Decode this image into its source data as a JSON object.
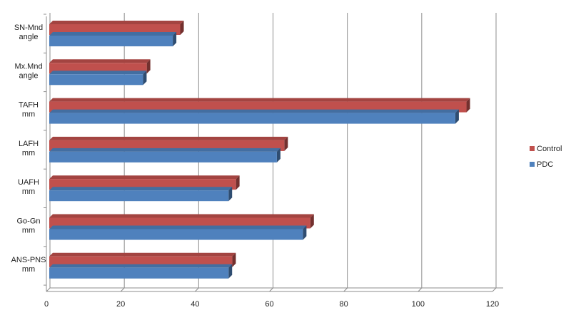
{
  "chart_data": {
    "type": "bar",
    "orientation": "horizontal",
    "style": "3d",
    "categories": [
      [
        "SN-Mnd",
        "angle"
      ],
      [
        "Mx.Mnd",
        "angle"
      ],
      [
        "TAFH",
        "mm"
      ],
      [
        "LAFH",
        "mm"
      ],
      [
        "UAFH",
        "mm"
      ],
      [
        "Go-Gn",
        "mm"
      ],
      [
        "ANS-PNS",
        "mm"
      ]
    ],
    "series": [
      {
        "name": "Control",
        "color": "#c0504d",
        "values": [
          36,
          27,
          113,
          64,
          51,
          71,
          50
        ]
      },
      {
        "name": "PDC",
        "color": "#4f81bd",
        "values": [
          34,
          26,
          110,
          62,
          49,
          69,
          49
        ]
      }
    ],
    "xlim": [
      0,
      120
    ],
    "xticks": [
      0,
      20,
      40,
      60,
      80,
      100,
      120
    ],
    "grid": true,
    "legend": "right"
  }
}
